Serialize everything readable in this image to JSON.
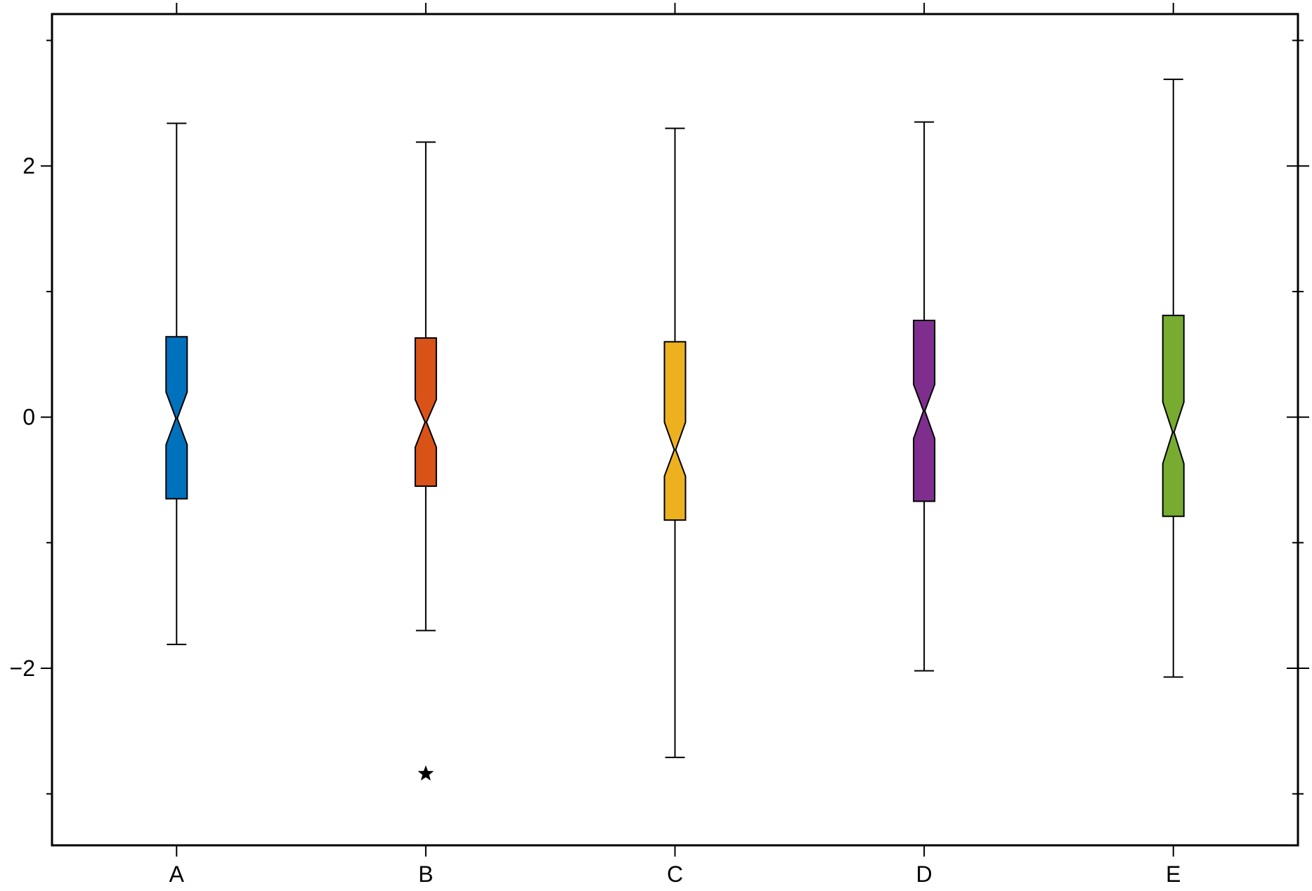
{
  "chart_data": {
    "type": "box",
    "notched": true,
    "categories": [
      "A",
      "B",
      "C",
      "D",
      "E"
    ],
    "colors": [
      "#0072BD",
      "#D95319",
      "#EDB120",
      "#7E2F8E",
      "#77AC30"
    ],
    "boxes": [
      {
        "name": "A",
        "whisker_low": -1.81,
        "q1": -0.65,
        "median": -0.01,
        "q3": 0.64,
        "whisker_high": 2.34,
        "notch_low": -0.22,
        "notch_high": 0.2,
        "outliers": []
      },
      {
        "name": "B",
        "whisker_low": -1.7,
        "q1": -0.55,
        "median": -0.04,
        "q3": 0.63,
        "whisker_high": 2.19,
        "notch_low": -0.24,
        "notch_high": 0.14,
        "outliers": [
          -2.84
        ]
      },
      {
        "name": "C",
        "whisker_low": -2.71,
        "q1": -0.82,
        "median": -0.26,
        "q3": 0.6,
        "whisker_high": 2.3,
        "notch_low": -0.47,
        "notch_high": -0.04,
        "outliers": []
      },
      {
        "name": "D",
        "whisker_low": -2.02,
        "q1": -0.67,
        "median": 0.05,
        "q3": 0.77,
        "whisker_high": 2.35,
        "notch_low": -0.17,
        "notch_high": 0.26,
        "outliers": []
      },
      {
        "name": "E",
        "whisker_low": -2.07,
        "q1": -0.79,
        "median": -0.12,
        "q3": 0.81,
        "whisker_high": 2.69,
        "notch_low": -0.37,
        "notch_high": 0.12,
        "outliers": []
      }
    ],
    "y_ticks": [
      {
        "value": 2,
        "label": "2"
      },
      {
        "value": 0,
        "label": "0"
      },
      {
        "value": -2,
        "label": "−2"
      }
    ],
    "y_minor_ticks": [
      -3,
      -1,
      1,
      3
    ],
    "ylim": [
      -3.41,
      3.21
    ],
    "title": "",
    "xlabel": "",
    "ylabel": "",
    "grid": false,
    "outlier_marker": "star"
  }
}
